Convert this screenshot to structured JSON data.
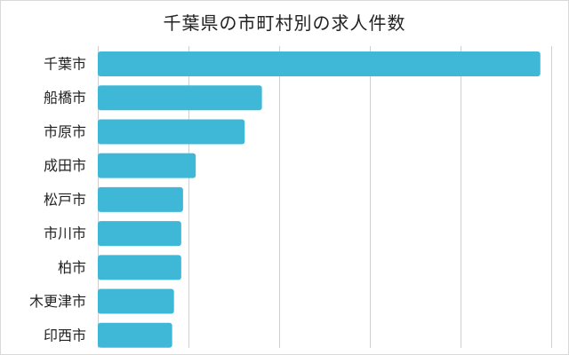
{
  "chart_data": {
    "type": "bar",
    "orientation": "horizontal",
    "title": "千葉県の市町村別の求人件数",
    "categories": [
      "千葉市",
      "船橋市",
      "市原市",
      "成田市",
      "松戸市",
      "市川市",
      "柏市",
      "木更津市",
      "印西市"
    ],
    "values": [
      488,
      181,
      162,
      108,
      94,
      92,
      92,
      84,
      82
    ],
    "xlim": [
      0,
      500
    ],
    "grid": true,
    "gridlines_x": [
      100,
      200,
      300,
      400,
      500
    ],
    "xaxis_tick_labels_shown": false,
    "legend": "none",
    "bar_color": "#3fb8d8",
    "grid_color": "#d0d0d0"
  }
}
